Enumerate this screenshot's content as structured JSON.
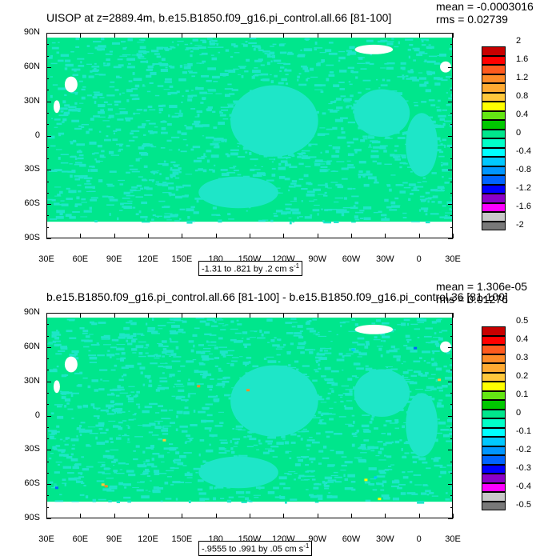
{
  "chart_data": [
    {
      "type": "heatmap",
      "title": "UISOP at z=2889.4m, b.e15.B1850.f09_g16.pi_control.all.66 [81-100]",
      "stats": [
        "mean = -0.0003016",
        "rms = 0.02739"
      ],
      "x_ticks": [
        "30E",
        "60E",
        "90E",
        "120E",
        "150E",
        "180",
        "150W",
        "120W",
        "90W",
        "60W",
        "30W",
        "0",
        "30E"
      ],
      "y_ticks": [
        "90N",
        "60N",
        "30N",
        "0",
        "30S",
        "60S",
        "90S"
      ],
      "range_text": "-1.31 to .821 by .2 cm s",
      "range_unit_exp": "-1",
      "colorbar": {
        "labels": [
          "2",
          "1.6",
          "1.2",
          "0.8",
          "0.4",
          "0",
          "-0.4",
          "-0.8",
          "-1.2",
          "-1.6",
          "-2"
        ],
        "colors": [
          "#c80000",
          "#ff0000",
          "#ff5a1e",
          "#ff8c28",
          "#ffaa32",
          "#ffc83c",
          "#ffff00",
          "#64e614",
          "#00c800",
          "#00e68c",
          "#00ffc8",
          "#00ffff",
          "#00c8ff",
          "#0096ff",
          "#0064ff",
          "#0000ff",
          "#8c00c8",
          "#ff00ff",
          "#c8c8c8",
          "#787878"
        ]
      },
      "field_dominant": "near 0 (green/cyan)"
    },
    {
      "type": "heatmap",
      "title": "b.e15.B1850.f09_g16.pi_control.all.66 [81-100] - b.e15.B1850.f09_g16.pi_control.36 [81-100]",
      "stats": [
        "mean = 1.306e-05",
        "rms = 0.01276"
      ],
      "x_ticks": [
        "30E",
        "60E",
        "90E",
        "120E",
        "150E",
        "180",
        "150W",
        "120W",
        "90W",
        "60W",
        "30W",
        "0",
        "30E"
      ],
      "y_ticks": [
        "90N",
        "60N",
        "30N",
        "0",
        "30S",
        "60S",
        "90S"
      ],
      "range_text": "-.9555 to .991 by .05 cm s",
      "range_unit_exp": "-1",
      "colorbar": {
        "labels": [
          "0.5",
          "0.4",
          "0.3",
          "0.2",
          "0.1",
          "0",
          "-0.1",
          "-0.2",
          "-0.3",
          "-0.4",
          "-0.5"
        ],
        "colors": [
          "#c80000",
          "#ff0000",
          "#ff5a1e",
          "#ff8c28",
          "#ffaa32",
          "#ffc83c",
          "#ffff00",
          "#64e614",
          "#00c800",
          "#00e68c",
          "#00ffc8",
          "#00ffff",
          "#00c8ff",
          "#0096ff",
          "#0064ff",
          "#0000ff",
          "#8c00c8",
          "#ff00ff",
          "#c8c8c8",
          "#787878"
        ]
      },
      "field_dominant": "near 0 (green/cyan)"
    }
  ],
  "palette": {
    "ocean_green": "#00e68c",
    "ocean_cyan": "#1ee6c8",
    "missing": "#ffffff"
  }
}
